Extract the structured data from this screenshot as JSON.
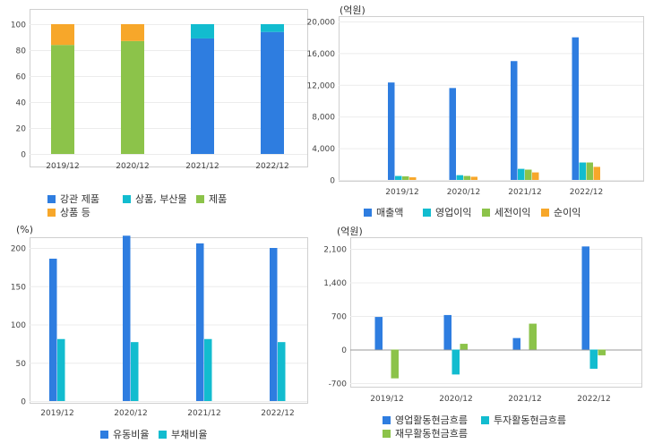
{
  "chart_data": [
    {
      "type": "bar",
      "stacked": true,
      "categories": [
        "2019/12",
        "2020/12",
        "2021/12",
        "2022/12"
      ],
      "ylim": [
        0,
        100
      ],
      "yticks": [
        "0",
        "20",
        "40",
        "60",
        "80",
        "100"
      ],
      "series": [
        {
          "name": "강관 제품",
          "color": "#2e7de0",
          "values": [
            0,
            0,
            89,
            94
          ]
        },
        {
          "name": "상품, 부산물",
          "color": "#12bccf",
          "values": [
            0,
            0,
            11,
            6
          ]
        },
        {
          "name": "제품",
          "color": "#8cc34a",
          "values": [
            84,
            87,
            0,
            0
          ]
        },
        {
          "name": "상품 등",
          "color": "#f7a72a",
          "values": [
            16,
            13,
            0,
            0
          ]
        }
      ]
    },
    {
      "type": "bar",
      "unit": "(억원)",
      "categories": [
        "2019/12",
        "2020/12",
        "2021/12",
        "2022/12"
      ],
      "ylim": [
        0,
        20000
      ],
      "yticks": [
        "0",
        "4,000",
        "8,000",
        "12,000",
        "16,000",
        "20,000"
      ],
      "series": [
        {
          "name": "매출액",
          "color": "#2e7de0",
          "values": [
            12300,
            11600,
            15000,
            18000
          ]
        },
        {
          "name": "영업이익",
          "color": "#12bccf",
          "values": [
            500,
            600,
            1400,
            2200
          ]
        },
        {
          "name": "세전이익",
          "color": "#8cc34a",
          "values": [
            450,
            500,
            1300,
            2200
          ]
        },
        {
          "name": "순이익",
          "color": "#f7a72a",
          "values": [
            330,
            400,
            950,
            1650
          ]
        }
      ]
    },
    {
      "type": "bar",
      "unit": "(%)",
      "categories": [
        "2019/12",
        "2020/12",
        "2021/12",
        "2022/12"
      ],
      "ylim": [
        0,
        220
      ],
      "yticks": [
        "0",
        "50",
        "100",
        "150",
        "200"
      ],
      "series": [
        {
          "name": "유동비율",
          "color": "#2e7de0",
          "values": [
            186,
            216,
            206,
            200
          ]
        },
        {
          "name": "부채비율",
          "color": "#12bccf",
          "values": [
            81,
            77,
            81,
            77
          ]
        }
      ]
    },
    {
      "type": "bar",
      "unit": "(억원)",
      "categories": [
        "2019/12",
        "2020/12",
        "2021/12",
        "2022/12"
      ],
      "ylim": [
        -840,
        2400
      ],
      "yticks": [
        "-700",
        "0",
        "700",
        "1,400",
        "2,100"
      ],
      "series": [
        {
          "name": "영업활동현금흐름",
          "color": "#2e7de0",
          "values": [
            680,
            720,
            240,
            2150
          ]
        },
        {
          "name": "투자활동현금흐름",
          "color": "#12bccf",
          "values": [
            0,
            -520,
            0,
            -400
          ]
        },
        {
          "name": "재무활동현금흐름",
          "color": "#8cc34a",
          "values": [
            -600,
            120,
            540,
            -120
          ]
        }
      ]
    }
  ]
}
